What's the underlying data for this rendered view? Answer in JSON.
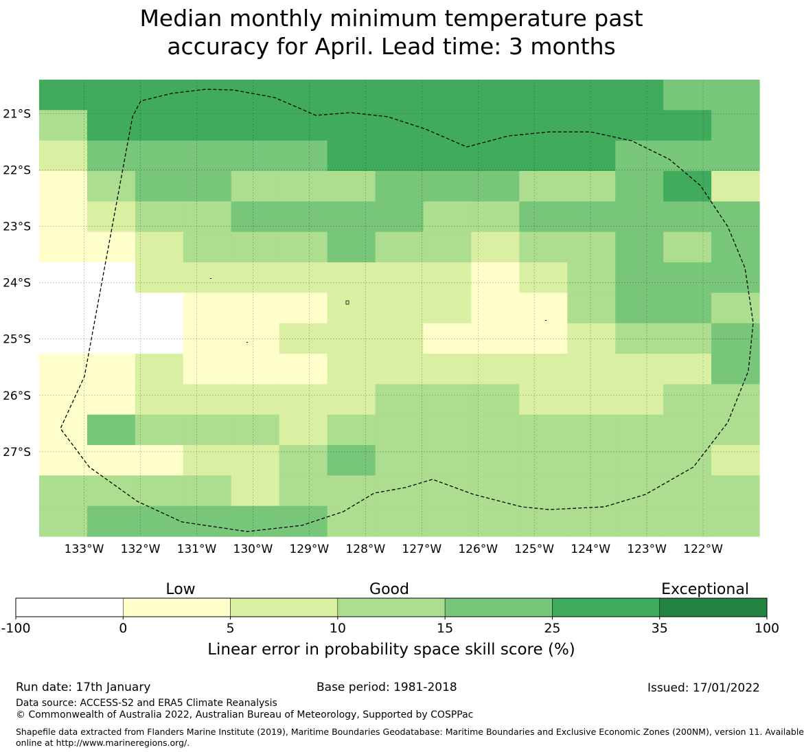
{
  "title": {
    "line1": "Median monthly minimum temperature past",
    "line2": "accuracy for April. Lead time: 3 months"
  },
  "map": {
    "lon_labels": [
      "133°W",
      "132°W",
      "131°W",
      "130°W",
      "129°W",
      "128°W",
      "127°W",
      "126°W",
      "125°W",
      "124°W",
      "123°W",
      "122°W"
    ],
    "lon_values": [
      -133,
      -132,
      -131,
      -130,
      -129,
      -128,
      -127,
      -126,
      -125,
      -124,
      -123,
      -122
    ],
    "lat_labels": [
      "21°S",
      "22°S",
      "23°S",
      "24°S",
      "25°S",
      "26°S",
      "27°S"
    ],
    "lat_values": [
      -21,
      -22,
      -23,
      -24,
      -25,
      -26,
      -27
    ],
    "lon_range": [
      -133.8,
      -121.0
    ],
    "lat_range": [
      -28.5,
      -20.4
    ],
    "cell_cols": 15,
    "cell_rows": 15,
    "cell_classes_top_to_bottom": [
      "555555555555544",
      "355555555555554",
      "244444555555444",
      "134433344433452",
      "123344443344444",
      "112333433233434",
      "002222222123444",
      "000111222113443",
      "000112221112334",
      "112111222222224",
      "112222233322233",
      "143332333333333",
      "111223433333332",
      "333323333333333",
      "344444333333333"
    ],
    "boundary_label": "Exclusive Economic Zone boundary (dashed)"
  },
  "colors": {
    "class_0": "#ffffff",
    "class_1": "#ffffcc",
    "class_2": "#d9f0a3",
    "class_3": "#addd8e",
    "class_4": "#78c679",
    "class_5": "#41ab5d",
    "class_6": "#238443"
  },
  "legend": {
    "category_labels": [
      "Low",
      "Good",
      "Exceptional"
    ],
    "tick_labels": [
      "-100",
      "0",
      "5",
      "10",
      "15",
      "25",
      "35",
      "100"
    ],
    "title": "Linear error in probability space skill score (%)"
  },
  "footer": {
    "run_date": "Run date: 17th January",
    "base_period": "Base period: 1981-2018",
    "issued": "Issued: 17/01/2022",
    "data_source": "Data source: ACCESS-S2 and ERA5 Climate Reanalysis",
    "copyright": "© Commonwealth of Australia 2022, Australian Bureau of Meteorology, Supported by COSPPac",
    "shapefile_line1": "Shapefile data extracted from Flanders Marine Institute (2019), Maritime Boundaries Geodatabase: Maritime Boundaries and Exclusive Economic Zones (200NM), version 11. Available",
    "shapefile_line2": "online at http://www.marineregions.org/."
  }
}
